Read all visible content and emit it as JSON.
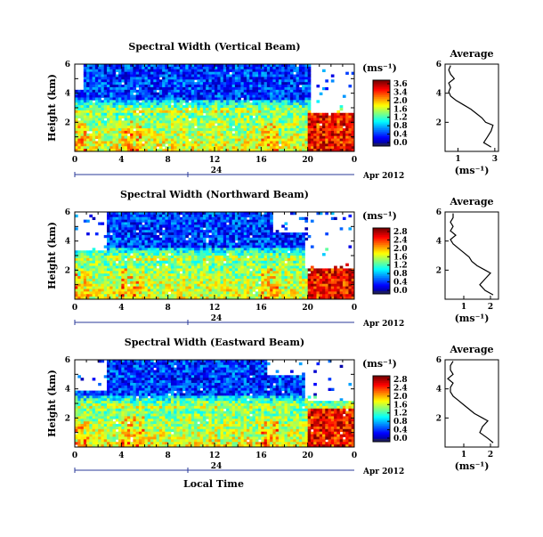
{
  "figure": {
    "xlabel": "Local Time",
    "date_label": "Apr 2012",
    "midnight_label": "24"
  },
  "chart_data": [
    {
      "type": "heatmap",
      "title": "Spectral Width (Vertical Beam)",
      "ylabel": "Height (km)",
      "x_ticks": [
        "0",
        "4",
        "8",
        "12",
        "16",
        "20",
        "0"
      ],
      "y_ticks": [
        "6",
        "4",
        "2"
      ],
      "xlim": [
        0,
        24
      ],
      "ylim": [
        0,
        6
      ],
      "colorbar": {
        "unit": "(ms⁻¹)",
        "ticks": [
          "3.6",
          "3.4",
          "2.0",
          "1.6",
          "1.2",
          "0.8",
          "0.4",
          "0.0"
        ],
        "range": [
          0,
          3.6
        ]
      },
      "average": {
        "title": "Average",
        "xlabel": "(ms⁻¹)",
        "x_ticks": [
          "1",
          "3"
        ],
        "y_ticks": [
          "6",
          "4",
          "2"
        ],
        "xlim": [
          0.3,
          3.2
        ],
        "height": [
          0.3,
          0.6,
          1.0,
          1.4,
          1.8,
          2.0,
          2.3,
          2.6,
          2.9,
          3.2,
          3.5,
          3.8,
          4.1,
          4.4,
          4.7,
          5.0,
          5.3,
          5.6,
          5.9
        ],
        "value": [
          2.8,
          2.4,
          2.6,
          2.8,
          2.9,
          2.5,
          2.3,
          2.0,
          1.7,
          1.3,
          0.9,
          0.6,
          0.5,
          0.6,
          0.5,
          0.8,
          0.6,
          0.5,
          0.6
        ]
      }
    },
    {
      "type": "heatmap",
      "title": "Spectral Width (Northward Beam)",
      "ylabel": "Height (km)",
      "x_ticks": [
        "0",
        "4",
        "8",
        "12",
        "16",
        "20",
        "0"
      ],
      "y_ticks": [
        "6",
        "4",
        "2"
      ],
      "xlim": [
        0,
        24
      ],
      "ylim": [
        0,
        6
      ],
      "colorbar": {
        "unit": "(ms⁻¹)",
        "ticks": [
          "2.8",
          "2.4",
          "2.0",
          "1.6",
          "1.2",
          "0.8",
          "0.4",
          "0.0"
        ],
        "range": [
          0,
          2.8
        ]
      },
      "average": {
        "title": "Average",
        "xlabel": "(ms⁻¹)",
        "x_ticks": [
          "1",
          "2"
        ],
        "y_ticks": [
          "6",
          "4",
          "2"
        ],
        "xlim": [
          0.3,
          2.3
        ],
        "height": [
          0.3,
          0.6,
          1.0,
          1.4,
          1.8,
          2.0,
          2.3,
          2.6,
          2.9,
          3.2,
          3.5,
          3.8,
          4.1,
          4.4,
          4.7,
          5.0,
          5.3,
          5.6,
          5.9
        ],
        "value": [
          2.1,
          1.8,
          1.6,
          1.8,
          2.0,
          1.8,
          1.5,
          1.3,
          1.2,
          1.0,
          0.8,
          0.6,
          0.5,
          0.7,
          0.5,
          0.6,
          0.5,
          0.6,
          0.6
        ]
      }
    },
    {
      "type": "heatmap",
      "title": "Spectral Width (Eastward Beam)",
      "ylabel": "Height (km)",
      "x_ticks": [
        "0",
        "4",
        "8",
        "12",
        "16",
        "20",
        "0"
      ],
      "y_ticks": [
        "6",
        "4",
        "2"
      ],
      "xlim": [
        0,
        24
      ],
      "ylim": [
        0,
        6
      ],
      "colorbar": {
        "unit": "(ms⁻¹)",
        "ticks": [
          "2.8",
          "2.4",
          "2.0",
          "1.6",
          "1.2",
          "0.8",
          "0.4",
          "0.0"
        ],
        "range": [
          0,
          2.8
        ]
      },
      "average": {
        "title": "Average",
        "xlabel": "(ms⁻¹)",
        "x_ticks": [
          "1",
          "2"
        ],
        "y_ticks": [
          "6",
          "4",
          "2"
        ],
        "xlim": [
          0.3,
          2.3
        ],
        "height": [
          0.3,
          0.6,
          1.0,
          1.4,
          1.8,
          2.0,
          2.3,
          2.6,
          2.9,
          3.2,
          3.5,
          3.8,
          4.1,
          4.4,
          4.7,
          5.0,
          5.3,
          5.6,
          5.9
        ],
        "value": [
          2.1,
          1.9,
          1.6,
          1.7,
          1.9,
          1.7,
          1.4,
          1.2,
          1.0,
          0.8,
          0.6,
          0.5,
          0.5,
          0.6,
          0.4,
          0.6,
          0.5,
          0.5,
          0.6
        ]
      }
    }
  ]
}
